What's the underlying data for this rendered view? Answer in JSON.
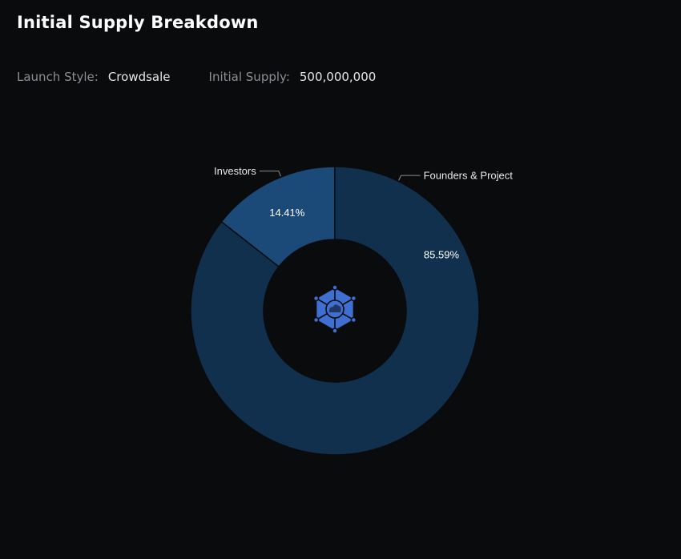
{
  "header": {
    "title": "Initial Supply Breakdown"
  },
  "meta": {
    "launch_style_label": "Launch Style:",
    "launch_style_value": "Crowdsale",
    "initial_supply_label": "Initial Supply:",
    "initial_supply_value": "500,000,000"
  },
  "center_icon": {
    "name": "token-logo-icon",
    "color": "#3f6fd1"
  },
  "chart_data": {
    "type": "pie",
    "donut": true,
    "start_angle_deg": 0,
    "direction": "counterclockwise",
    "categories": [
      "Investors",
      "Founders & Project"
    ],
    "values": [
      14.41,
      85.59
    ],
    "value_labels": [
      "14.41%",
      "85.59%"
    ],
    "colors": [
      "#1c4a78",
      "#11304e"
    ],
    "stroke_color": "#0a0b0d",
    "title": "",
    "legend": "callouts"
  }
}
